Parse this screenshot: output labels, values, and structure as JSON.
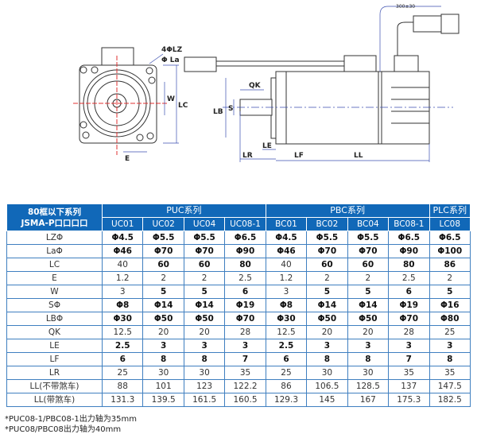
{
  "drawing": {
    "labels": {
      "lz": "4ΦLZ",
      "la": "Φ La",
      "w": "W",
      "lc": "LC",
      "e": "E",
      "qk": "QK",
      "s": "S",
      "lb": "LB",
      "le": "LE",
      "lr": "LR",
      "lf": "LF",
      "ll": "LL",
      "cable": "300±30"
    }
  },
  "table": {
    "corner": [
      "80框以下系列",
      "JSMA-P口口口口"
    ],
    "groups": [
      {
        "label": "PUC系列",
        "span": 4
      },
      {
        "label": "PBC系列",
        "span": 4
      },
      {
        "label": "PLC系列",
        "span": 1
      }
    ],
    "models": [
      "UC01",
      "UC02",
      "UC04",
      "UC08-1",
      "BC01",
      "BC02",
      "BC04",
      "BC08-1",
      "LC08"
    ],
    "rows": [
      {
        "label": "LZΦ",
        "values": [
          "Φ4.5",
          "Φ5.5",
          "Φ5.5",
          "Φ6.5",
          "Φ4.5",
          "Φ5.5",
          "Φ5.5",
          "Φ6.5",
          "Φ6.5"
        ]
      },
      {
        "label": "LaΦ",
        "values": [
          "Φ46",
          "Φ70",
          "Φ70",
          "Φ90",
          "Φ46",
          "Φ70",
          "Φ70",
          "Φ90",
          "Φ100"
        ]
      },
      {
        "label": "LC",
        "values": [
          "40",
          "60",
          "60",
          "80",
          "40",
          "60",
          "60",
          "80",
          "86"
        ]
      },
      {
        "label": "E",
        "values": [
          "1.2",
          "2",
          "2",
          "2.5",
          "1.2",
          "2",
          "2",
          "2.5",
          "2"
        ]
      },
      {
        "label": "W",
        "values": [
          "3",
          "5",
          "5",
          "6",
          "3",
          "5",
          "5",
          "6",
          "5"
        ]
      },
      {
        "label": "SΦ",
        "values": [
          "Φ8",
          "Φ14",
          "Φ14",
          "Φ19",
          "Φ8",
          "Φ14",
          "Φ14",
          "Φ19",
          "Φ16"
        ]
      },
      {
        "label": "LBΦ",
        "values": [
          "Φ30",
          "Φ50",
          "Φ50",
          "Φ70",
          "Φ30",
          "Φ50",
          "Φ50",
          "Φ70",
          "Φ80"
        ]
      },
      {
        "label": "QK",
        "values": [
          "12.5",
          "20",
          "20",
          "28",
          "12.5",
          "20",
          "20",
          "28",
          "25"
        ]
      },
      {
        "label": "LE",
        "values": [
          "2.5",
          "3",
          "3",
          "3",
          "2.5",
          "3",
          "3",
          "3",
          "3"
        ]
      },
      {
        "label": "LF",
        "values": [
          "6",
          "8",
          "8",
          "7",
          "6",
          "8",
          "8",
          "7",
          "8"
        ]
      },
      {
        "label": "LR",
        "values": [
          "25",
          "30",
          "30",
          "35",
          "25",
          "30",
          "30",
          "35",
          "35"
        ]
      },
      {
        "label": "LL(不带煞车)",
        "values": [
          "88",
          "101",
          "123",
          "122.2",
          "86",
          "106.5",
          "128.5",
          "137",
          "147.5"
        ]
      },
      {
        "label": "LL(带煞车)",
        "values": [
          "131.3",
          "139.5",
          "161.5",
          "160.5",
          "129.3",
          "145",
          "167",
          "175.3",
          "182.5"
        ]
      }
    ]
  },
  "notes": [
    "*PUC08-1/PBC08-1出力轴为35mm",
    "*PUC08/PBC08出力轴为40mm"
  ],
  "colors": {
    "header": "#1168b8",
    "border": "#3f7fc0",
    "dimension": "#3b4fb0",
    "centerline": "#e03030"
  }
}
